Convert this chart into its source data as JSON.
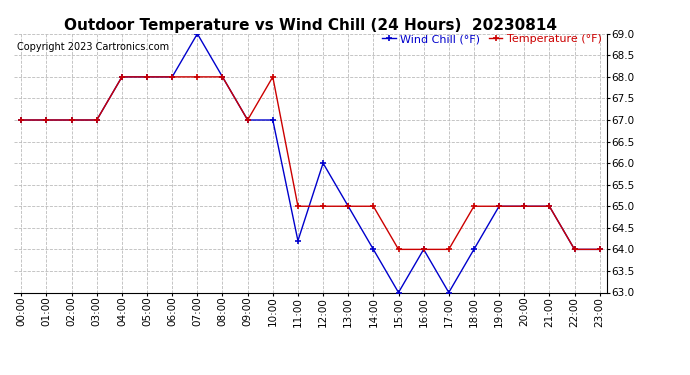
{
  "title": "Outdoor Temperature vs Wind Chill (24 Hours)  20230814",
  "copyright": "Copyright 2023 Cartronics.com",
  "legend_wind_chill": "Wind Chill (°F)",
  "legend_temperature": "Temperature (°F)",
  "hours": [
    0,
    1,
    2,
    3,
    4,
    5,
    6,
    7,
    8,
    9,
    10,
    11,
    12,
    13,
    14,
    15,
    16,
    17,
    18,
    19,
    20,
    21,
    22,
    23
  ],
  "temperature": [
    67.0,
    67.0,
    67.0,
    67.0,
    68.0,
    68.0,
    68.0,
    68.0,
    68.0,
    67.0,
    68.0,
    65.0,
    65.0,
    65.0,
    65.0,
    64.0,
    64.0,
    64.0,
    65.0,
    65.0,
    65.0,
    65.0,
    64.0,
    64.0
  ],
  "wind_chill": [
    67.0,
    67.0,
    67.0,
    67.0,
    68.0,
    68.0,
    68.0,
    69.0,
    68.0,
    67.0,
    67.0,
    64.2,
    66.0,
    65.0,
    64.0,
    63.0,
    64.0,
    63.0,
    64.0,
    65.0,
    65.0,
    65.0,
    64.0,
    64.0
  ],
  "temp_color": "#cc0000",
  "wind_color": "#0000cc",
  "ylim_min": 63.0,
  "ylim_max": 69.0,
  "ytick_step": 0.5,
  "bg_color": "#ffffff",
  "grid_color": "#bbbbbb",
  "title_fontsize": 11,
  "axis_fontsize": 7.5,
  "copyright_fontsize": 7,
  "legend_fontsize": 8
}
